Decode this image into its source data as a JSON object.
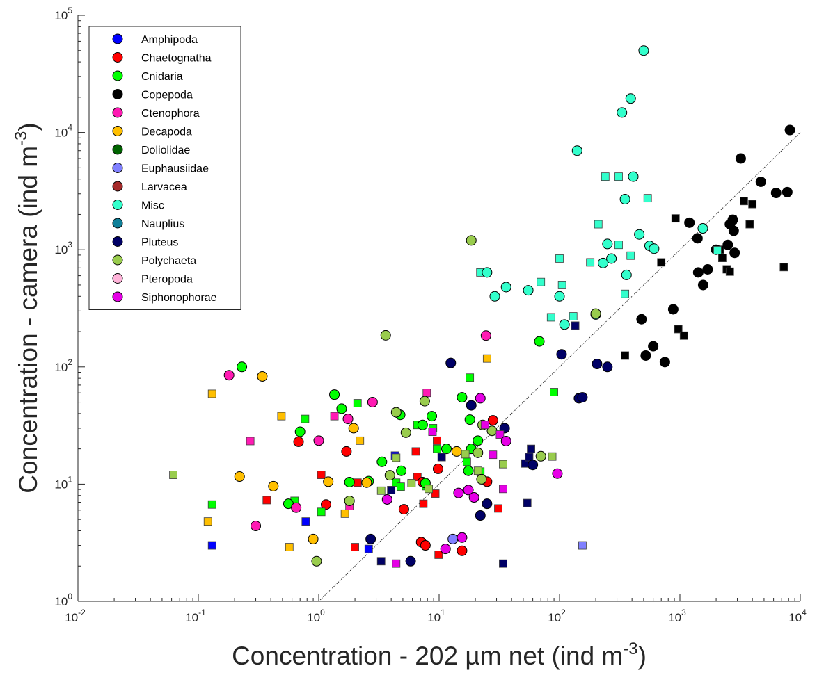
{
  "chart_data": {
    "type": "scatter",
    "title": "",
    "xlabel": "Concentration - 202 µm net (ind m",
    "xlabel_exp": "-3",
    "xlabel_suffix": ")",
    "ylabel": "Concentration - camera (ind m",
    "ylabel_exp": "-3",
    "ylabel_suffix": ")",
    "x_scale": "log",
    "y_scale": "log",
    "xlim": [
      0.01,
      10000
    ],
    "ylim": [
      1,
      100000
    ],
    "x_ticks": [
      {
        "base": "10",
        "exp": "-2",
        "value": 0.01
      },
      {
        "base": "10",
        "exp": "-1",
        "value": 0.1
      },
      {
        "base": "10",
        "exp": "0",
        "value": 1
      },
      {
        "base": "10",
        "exp": "1",
        "value": 10
      },
      {
        "base": "10",
        "exp": "2",
        "value": 100
      },
      {
        "base": "10",
        "exp": "3",
        "value": 1000
      },
      {
        "base": "10",
        "exp": "4",
        "value": 10000
      }
    ],
    "y_ticks": [
      {
        "base": "10",
        "exp": "0",
        "value": 1
      },
      {
        "base": "10",
        "exp": "1",
        "value": 10
      },
      {
        "base": "10",
        "exp": "2",
        "value": 100
      },
      {
        "base": "10",
        "exp": "3",
        "value": 1000
      },
      {
        "base": "10",
        "exp": "4",
        "value": 10000
      },
      {
        "base": "10",
        "exp": "5",
        "value": 100000
      }
    ],
    "grid": false,
    "legend_position": "top-left",
    "reference_line": {
      "style": "dotted",
      "from": [
        1,
        1
      ],
      "to": [
        10000,
        10000
      ]
    },
    "series": [
      {
        "name": "Amphipoda",
        "color": "#0000ff",
        "circles": [],
        "squares": [
          [
            0.13,
            3.0
          ],
          [
            0.78,
            4.8
          ],
          [
            2.6,
            2.8
          ],
          [
            4.3,
            17.5
          ]
        ]
      },
      {
        "name": "Chaetognatha",
        "color": "#ff0000",
        "circles": [
          [
            0.68,
            23
          ],
          [
            1.15,
            6.7
          ],
          [
            1.7,
            19
          ],
          [
            5.1,
            6.1
          ],
          [
            7.1,
            3.2
          ],
          [
            7.7,
            3.0
          ],
          [
            9.8,
            13.5
          ],
          [
            15.5,
            2.7
          ],
          [
            25,
            10.5
          ],
          [
            28,
            35
          ],
          [
            7.3,
            10.4
          ]
        ],
        "squares": [
          [
            0.37,
            7.3
          ],
          [
            1.05,
            12
          ],
          [
            2.0,
            2.9
          ],
          [
            2.1,
            10.3
          ],
          [
            6.4,
            19
          ],
          [
            6.6,
            11.5
          ],
          [
            7.4,
            6.8
          ],
          [
            9.3,
            8.3
          ],
          [
            9.6,
            23.5
          ],
          [
            9.9,
            2.5
          ],
          [
            31,
            6.2
          ]
        ]
      },
      {
        "name": "Cnidaria",
        "color": "#00ff00",
        "circles": [
          [
            0.23,
            100
          ],
          [
            0.7,
            28
          ],
          [
            0.56,
            6.8
          ],
          [
            1.35,
            58
          ],
          [
            1.55,
            44
          ],
          [
            1.8,
            10.4
          ],
          [
            2.6,
            10.6
          ],
          [
            3.35,
            15.5
          ],
          [
            4.75,
            39
          ],
          [
            4.85,
            13
          ],
          [
            7.3,
            32
          ],
          [
            7.7,
            10.2
          ],
          [
            8.7,
            38
          ],
          [
            11.5,
            20
          ],
          [
            15.5,
            55
          ],
          [
            17.5,
            13
          ],
          [
            18,
            35.5
          ],
          [
            21,
            23.5
          ],
          [
            68,
            165
          ],
          [
            18.5,
            20
          ]
        ],
        "squares": [
          [
            0.13,
            6.7
          ],
          [
            0.63,
            7.2
          ],
          [
            0.77,
            36
          ],
          [
            1.05,
            5.8
          ],
          [
            2.1,
            49
          ],
          [
            4.4,
            10.3
          ],
          [
            4.8,
            9.5
          ],
          [
            6.6,
            32
          ],
          [
            7.8,
            9.6
          ],
          [
            8.9,
            30
          ],
          [
            9.6,
            20
          ],
          [
            17,
            15.5
          ],
          [
            18,
            81
          ],
          [
            22,
            12.8
          ],
          [
            90,
            61
          ]
        ]
      },
      {
        "name": "Copepoda",
        "color": "#000000",
        "circles": [
          [
            480,
            255
          ],
          [
            520,
            125
          ],
          [
            600,
            150
          ],
          [
            750,
            110
          ],
          [
            880,
            310
          ],
          [
            1200,
            1700
          ],
          [
            1400,
            1250
          ],
          [
            1420,
            640
          ],
          [
            1560,
            500
          ],
          [
            1700,
            680
          ],
          [
            2000,
            1000
          ],
          [
            2500,
            1100
          ],
          [
            2600,
            1650
          ],
          [
            2750,
            1800
          ],
          [
            2800,
            1450
          ],
          [
            2850,
            940
          ],
          [
            3200,
            6000
          ],
          [
            4700,
            3800
          ],
          [
            6300,
            3050
          ],
          [
            7800,
            3100
          ],
          [
            8200,
            10500
          ]
        ],
        "squares": [
          [
            350,
            125
          ],
          [
            700,
            780
          ],
          [
            920,
            1850
          ],
          [
            970,
            210
          ],
          [
            1080,
            185
          ],
          [
            2150,
            1000
          ],
          [
            2250,
            850
          ],
          [
            2450,
            680
          ],
          [
            2600,
            650
          ],
          [
            2750,
            1800
          ],
          [
            3400,
            2600
          ],
          [
            3800,
            1650
          ],
          [
            4000,
            2450
          ],
          [
            7300,
            710
          ]
        ]
      },
      {
        "name": "Ctenophora",
        "color": "#ff1ab3",
        "circles": [
          [
            0.18,
            85
          ],
          [
            0.3,
            4.4
          ],
          [
            0.65,
            6.3
          ],
          [
            1.0,
            23.5
          ],
          [
            1.75,
            36
          ],
          [
            2.8,
            50
          ],
          [
            24.5,
            185
          ]
        ],
        "squares": [
          [
            0.27,
            23.3
          ],
          [
            1.35,
            38
          ],
          [
            1.8,
            6.5
          ],
          [
            7.9,
            60
          ]
        ]
      },
      {
        "name": "Decapoda",
        "color": "#ffbf00",
        "circles": [
          [
            0.22,
            11.6
          ],
          [
            0.34,
            83
          ],
          [
            0.42,
            9.6
          ],
          [
            0.9,
            3.4
          ],
          [
            1.2,
            10.5
          ],
          [
            1.95,
            30
          ],
          [
            2.5,
            10.3
          ],
          [
            14,
            19
          ]
        ],
        "squares": [
          [
            0.12,
            4.8
          ],
          [
            0.13,
            59
          ],
          [
            0.49,
            38
          ],
          [
            0.57,
            2.9
          ],
          [
            1.65,
            5.6
          ],
          [
            2.2,
            23.5
          ],
          [
            25,
            118
          ]
        ]
      },
      {
        "name": "Doliolidae",
        "color": "#006400",
        "circles": [],
        "squares": []
      },
      {
        "name": "Euphausiidae",
        "color": "#8080ff",
        "circles": [
          [
            13,
            3.4
          ]
        ],
        "squares": [
          [
            155,
            3.0
          ]
        ]
      },
      {
        "name": "Larvacea",
        "color": "#a52a2a",
        "circles": [],
        "squares": []
      },
      {
        "name": "Misc",
        "color": "#33ffcc",
        "circles": [
          [
            140,
            7000
          ],
          [
            200,
            280
          ],
          [
            230,
            770
          ],
          [
            270,
            840
          ],
          [
            250,
            1120
          ],
          [
            330,
            14800
          ],
          [
            350,
            2700
          ],
          [
            360,
            610
          ],
          [
            390,
            19500
          ],
          [
            410,
            4200
          ],
          [
            460,
            1350
          ],
          [
            500,
            50000
          ],
          [
            560,
            1080
          ],
          [
            610,
            1020
          ],
          [
            1550,
            1520
          ],
          [
            25,
            640
          ],
          [
            29,
            400
          ],
          [
            36,
            480
          ],
          [
            55,
            450
          ],
          [
            100,
            400
          ],
          [
            110,
            230
          ]
        ],
        "squares": [
          [
            22,
            640
          ],
          [
            70,
            530
          ],
          [
            85,
            265
          ],
          [
            100,
            840
          ],
          [
            105,
            500
          ],
          [
            130,
            270
          ],
          [
            180,
            780
          ],
          [
            210,
            1650
          ],
          [
            240,
            4200
          ],
          [
            310,
            4200
          ],
          [
            310,
            1100
          ],
          [
            350,
            420
          ],
          [
            390,
            890
          ],
          [
            540,
            2750
          ],
          [
            2050,
            990
          ]
        ]
      },
      {
        "name": "Nauplius",
        "color": "#0f8099",
        "circles": [],
        "squares": []
      },
      {
        "name": "Pluteus",
        "color": "#000066",
        "circles": [
          [
            2.7,
            3.4
          ],
          [
            5.8,
            2.2
          ],
          [
            12.5,
            108
          ],
          [
            18.5,
            47
          ],
          [
            22,
            5.4
          ],
          [
            25,
            6.8
          ],
          [
            35,
            30
          ],
          [
            60,
            14.6
          ],
          [
            104,
            128
          ],
          [
            145,
            54
          ],
          [
            155,
            55
          ],
          [
            205,
            106
          ],
          [
            250,
            100
          ]
        ],
        "squares": [
          [
            3.3,
            2.2
          ],
          [
            4.0,
            8.9
          ],
          [
            8.8,
            28
          ],
          [
            10.5,
            17
          ],
          [
            34,
            2.1
          ],
          [
            52,
            15
          ],
          [
            54,
            6.9
          ],
          [
            56,
            17
          ],
          [
            58,
            20
          ],
          [
            135,
            225
          ]
        ]
      },
      {
        "name": "Polychaeta",
        "color": "#99cc4d",
        "circles": [
          [
            0.96,
            2.2
          ],
          [
            1.8,
            7.2
          ],
          [
            3.6,
            186
          ],
          [
            3.9,
            11.9
          ],
          [
            4.4,
            41
          ],
          [
            5.3,
            27.5
          ],
          [
            7.6,
            51
          ],
          [
            18.5,
            1200
          ],
          [
            21,
            18.5
          ],
          [
            22.5,
            11
          ],
          [
            23,
            32
          ],
          [
            27.5,
            28.5
          ],
          [
            70,
            17.3
          ],
          [
            200,
            285
          ]
        ],
        "squares": [
          [
            0.062,
            12
          ],
          [
            3.3,
            8.8
          ],
          [
            4.4,
            16.8
          ],
          [
            5.9,
            10.2
          ],
          [
            8.2,
            9.1
          ],
          [
            16.5,
            18
          ],
          [
            21,
            13
          ],
          [
            34,
            14.8
          ],
          [
            87,
            17.2
          ]
        ]
      },
      {
        "name": "Pteropoda",
        "color": "#ffb3d9",
        "circles": [],
        "squares": []
      },
      {
        "name": "Siphonophorae",
        "color": "#e600e6",
        "circles": [
          [
            3.7,
            7.4
          ],
          [
            11.3,
            2.8
          ],
          [
            14.5,
            8.4
          ],
          [
            15.5,
            3.5
          ],
          [
            17.5,
            8.9
          ],
          [
            19.5,
            7.7
          ],
          [
            22,
            54
          ],
          [
            36,
            23.3
          ],
          [
            96,
            12.3
          ]
        ],
        "squares": [
          [
            4.4,
            2.1
          ],
          [
            8.8,
            28
          ],
          [
            24,
            32
          ],
          [
            28,
            17.8
          ],
          [
            32,
            26.5
          ],
          [
            34,
            9.1
          ]
        ]
      }
    ]
  }
}
